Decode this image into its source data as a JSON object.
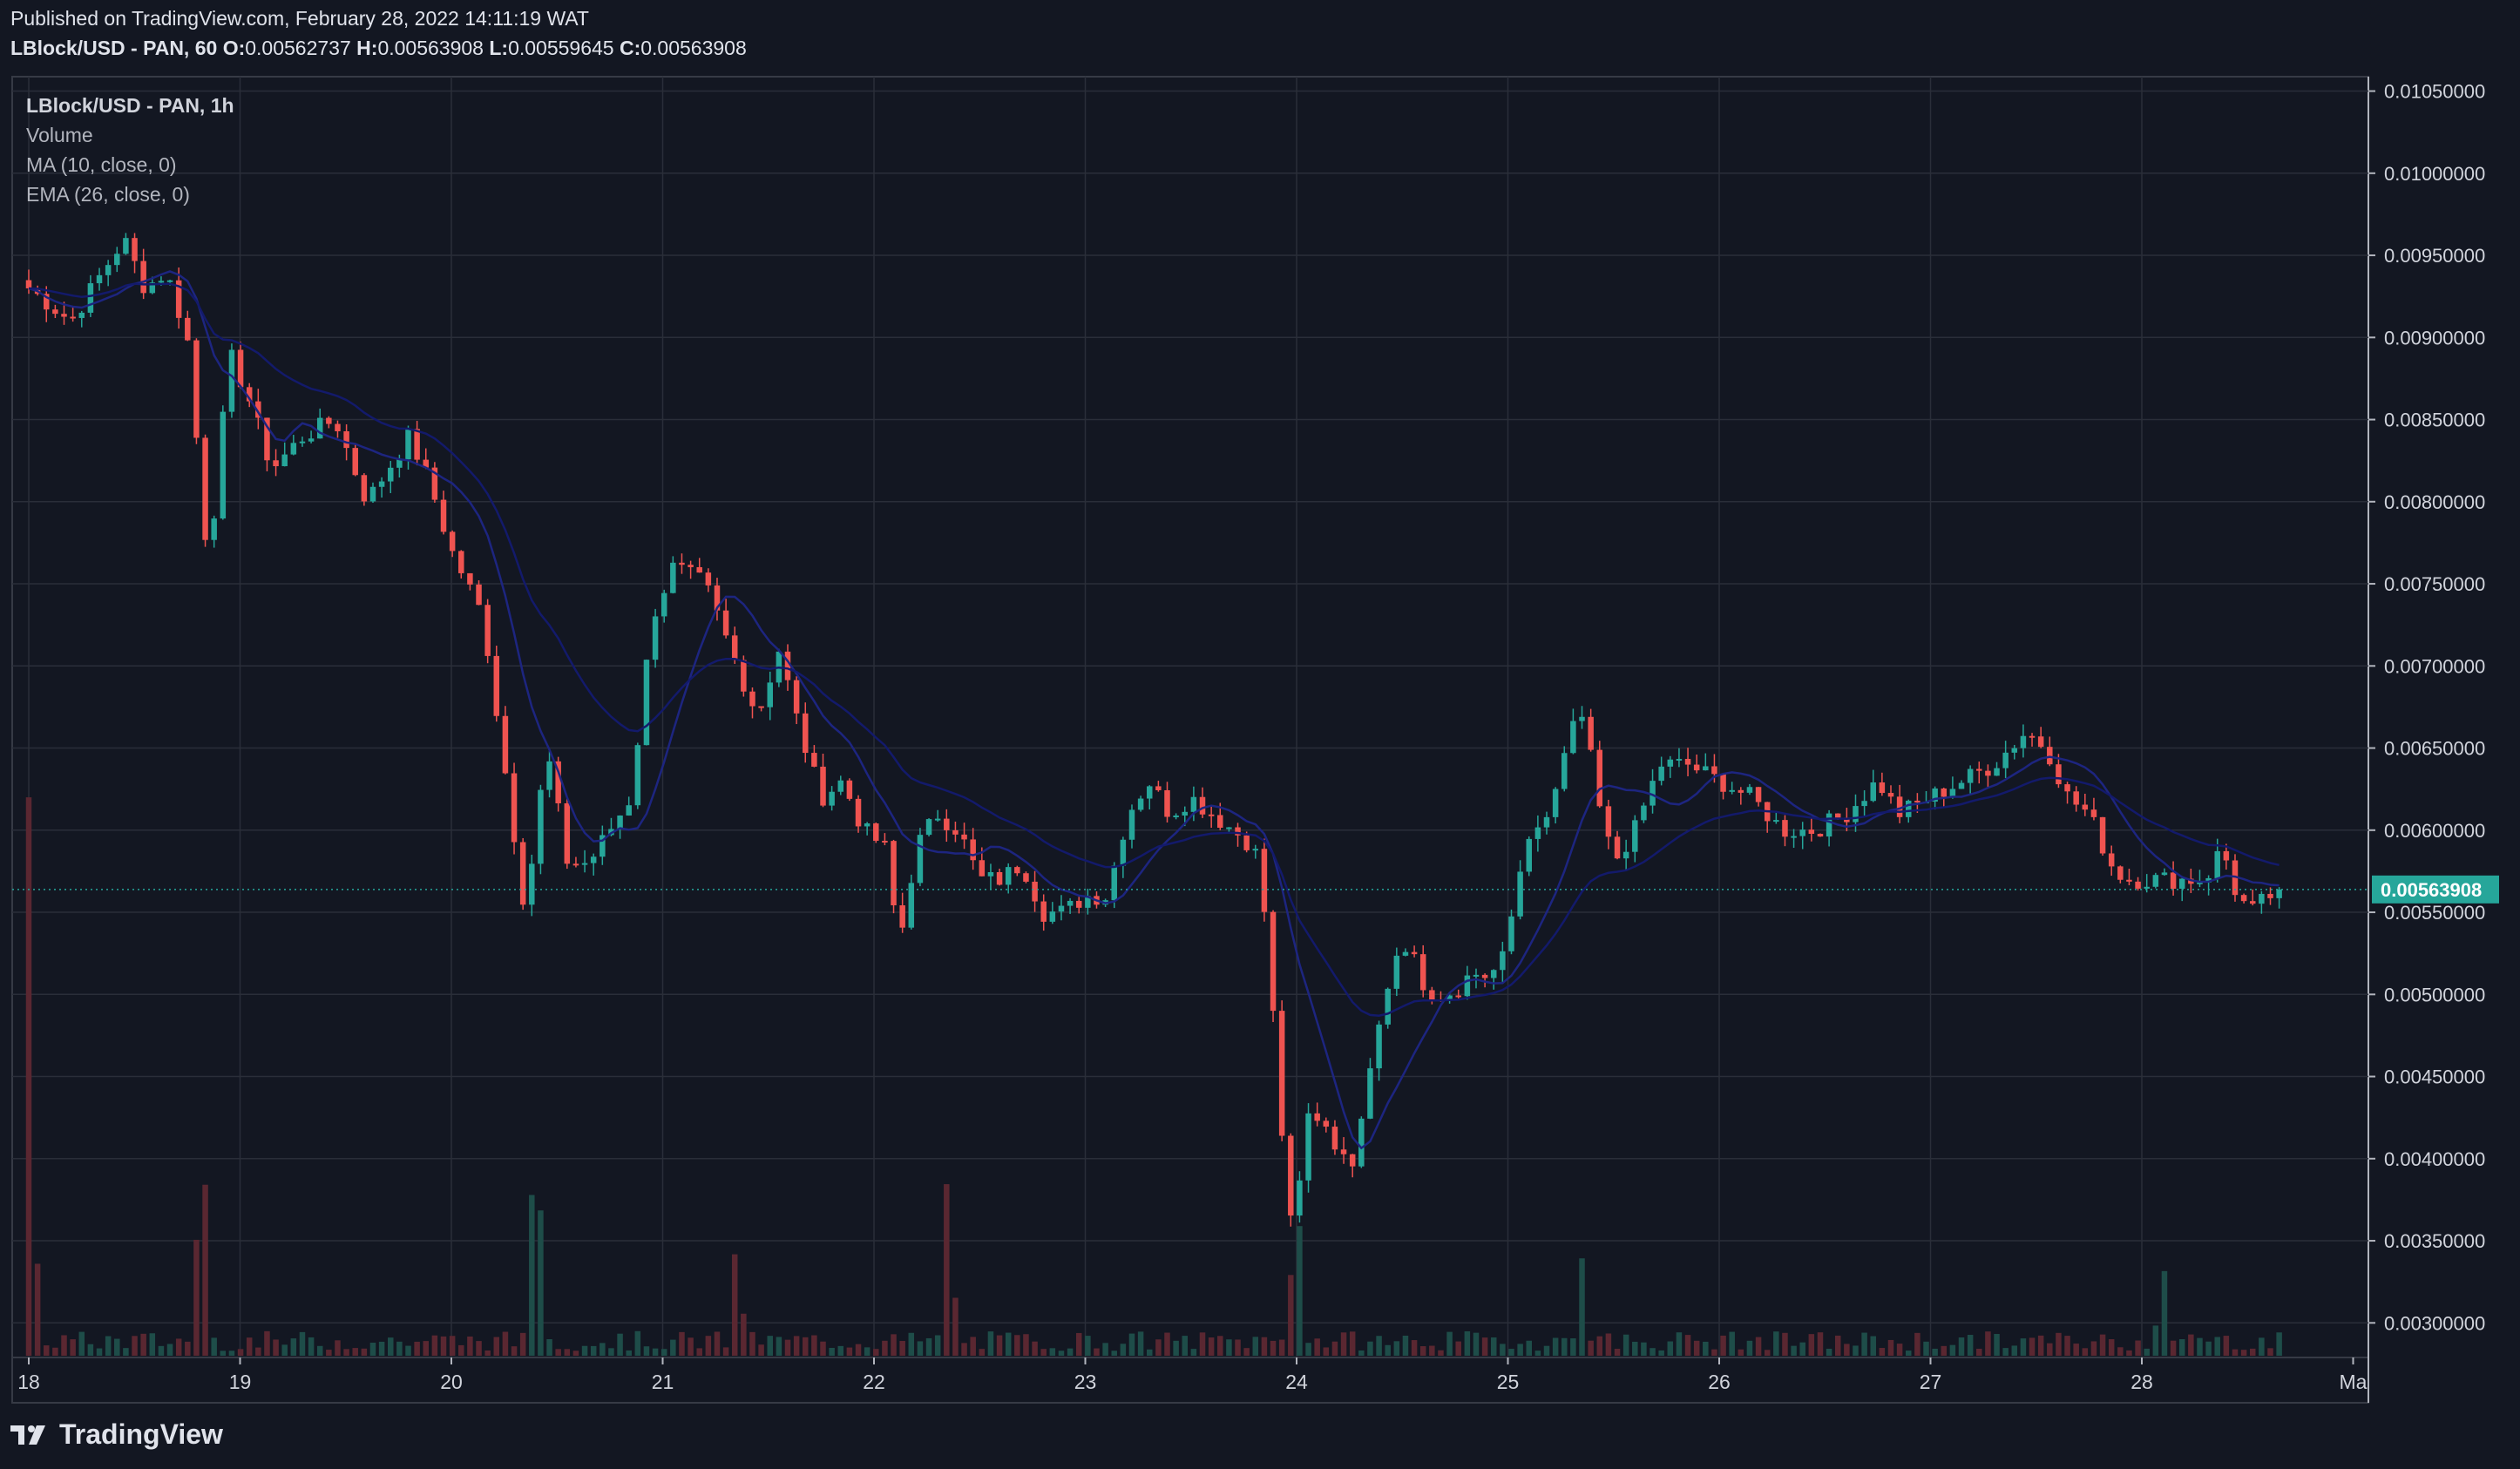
{
  "header": {
    "published": "Published on TradingView.com, February 28, 2022 14:11:19 WAT",
    "symbol": "LBlock/USD - PAN, 60",
    "open_label": "O:",
    "open": "0.00562737",
    "high_label": "H:",
    "high": "0.00563908",
    "low_label": "L:",
    "low": "0.00559645",
    "close_label": "C:",
    "close": "0.00563908"
  },
  "legend": {
    "title": "LBlock/USD - PAN, 1h",
    "items": [
      "Volume",
      "MA (10, close, 0)",
      "EMA (26, close, 0)"
    ]
  },
  "footer": {
    "brand": "TradingView",
    "logo_icon": "tradingview-logo-icon"
  },
  "colors": {
    "background": "#131722",
    "grid": "#2a2e39",
    "up": "#26a69a",
    "down": "#ef5350",
    "vol_up": "#1e4d49",
    "vol_down": "#5a2731",
    "ma": "#1d2580",
    "ema": "#131a6b",
    "last_price": "#26a69a"
  },
  "chart_data": {
    "type": "candlestick",
    "timeframe": "1h",
    "y_axis": {
      "min": 0.0028,
      "max": 0.0106,
      "ticks": [
        "0.01050000",
        "0.01000000",
        "0.00950000",
        "0.00900000",
        "0.00850000",
        "0.00800000",
        "0.00750000",
        "0.00700000",
        "0.00650000",
        "0.00600000",
        "0.00550000",
        "0.00500000",
        "0.00450000",
        "0.00400000",
        "0.00350000",
        "0.00300000"
      ]
    },
    "x_axis": {
      "ticks": [
        "18",
        "19",
        "20",
        "21",
        "22",
        "23",
        "24",
        "25",
        "26",
        "27",
        "28",
        "Ma"
      ]
    },
    "last_price": {
      "value": 0.00563908,
      "label": "0.00563908"
    },
    "grid": true,
    "close_anchors": [
      [
        0,
        0.0093
      ],
      [
        0.2,
        0.0091
      ],
      [
        0.45,
        0.0096
      ],
      [
        0.55,
        0.0093
      ],
      [
        0.65,
        0.0094
      ],
      [
        0.75,
        0.009
      ],
      [
        0.85,
        0.0076
      ],
      [
        0.95,
        0.0089
      ],
      [
        1.05,
        0.0086
      ],
      [
        1.15,
        0.0082
      ],
      [
        1.3,
        0.0084
      ],
      [
        1.45,
        0.0085
      ],
      [
        1.6,
        0.008
      ],
      [
        1.7,
        0.0082
      ],
      [
        1.8,
        0.0084
      ],
      [
        1.9,
        0.0081
      ],
      [
        2.0,
        0.0077
      ],
      [
        2.15,
        0.0073
      ],
      [
        2.25,
        0.0064
      ],
      [
        2.35,
        0.0055
      ],
      [
        2.45,
        0.0065
      ],
      [
        2.55,
        0.0058
      ],
      [
        2.65,
        0.0058
      ],
      [
        2.75,
        0.006
      ],
      [
        2.85,
        0.0062
      ],
      [
        2.95,
        0.0073
      ],
      [
        3.05,
        0.0076
      ],
      [
        3.2,
        0.0075
      ],
      [
        3.35,
        0.007
      ],
      [
        3.45,
        0.0067
      ],
      [
        3.55,
        0.0071
      ],
      [
        3.65,
        0.0066
      ],
      [
        3.75,
        0.0062
      ],
      [
        3.85,
        0.0063
      ],
      [
        3.95,
        0.006
      ],
      [
        4.05,
        0.0059
      ],
      [
        4.12,
        0.0053
      ],
      [
        4.2,
        0.0059
      ],
      [
        4.3,
        0.0061
      ],
      [
        4.4,
        0.006
      ],
      [
        4.5,
        0.0057
      ],
      [
        4.6,
        0.0057
      ],
      [
        4.7,
        0.0058
      ],
      [
        4.8,
        0.0055
      ],
      [
        4.9,
        0.0055
      ],
      [
        5.0,
        0.0056
      ],
      [
        5.1,
        0.0056
      ],
      [
        5.2,
        0.0061
      ],
      [
        5.3,
        0.0063
      ],
      [
        5.4,
        0.0061
      ],
      [
        5.5,
        0.0062
      ],
      [
        5.6,
        0.0061
      ],
      [
        5.7,
        0.006
      ],
      [
        5.8,
        0.0059
      ],
      [
        5.86,
        0.0054
      ],
      [
        5.92,
        0.0043
      ],
      [
        5.98,
        0.0035
      ],
      [
        6.06,
        0.0043
      ],
      [
        6.15,
        0.0042
      ],
      [
        6.25,
        0.0039
      ],
      [
        6.35,
        0.0046
      ],
      [
        6.45,
        0.0052
      ],
      [
        6.55,
        0.0053
      ],
      [
        6.62,
        0.0049
      ],
      [
        6.72,
        0.005
      ],
      [
        6.85,
        0.0051
      ],
      [
        6.95,
        0.0051
      ],
      [
        7.02,
        0.0055
      ],
      [
        7.12,
        0.006
      ],
      [
        7.2,
        0.0061
      ],
      [
        7.3,
        0.0066
      ],
      [
        7.36,
        0.0067
      ],
      [
        7.42,
        0.0062
      ],
      [
        7.5,
        0.0058
      ],
      [
        7.6,
        0.006
      ],
      [
        7.72,
        0.0064
      ],
      [
        7.85,
        0.0064
      ],
      [
        8.0,
        0.0063
      ],
      [
        8.15,
        0.0062
      ],
      [
        8.3,
        0.006
      ],
      [
        8.45,
        0.006
      ],
      [
        8.6,
        0.0061
      ],
      [
        8.75,
        0.0063
      ],
      [
        8.85,
        0.0061
      ],
      [
        9.0,
        0.0062
      ],
      [
        9.15,
        0.0063
      ],
      [
        9.3,
        0.0064
      ],
      [
        9.45,
        0.0066
      ],
      [
        9.55,
        0.0065
      ],
      [
        9.65,
        0.0062
      ],
      [
        9.75,
        0.0061
      ],
      [
        9.85,
        0.0058
      ],
      [
        9.92,
        0.0057
      ],
      [
        10.05,
        0.0057
      ],
      [
        10.2,
        0.0057
      ],
      [
        10.3,
        0.0057
      ],
      [
        10.38,
        0.0059
      ],
      [
        10.45,
        0.0056
      ],
      [
        10.52,
        0.0055
      ],
      [
        10.6,
        0.0056
      ],
      [
        10.65,
        0.0056
      ]
    ],
    "volume_peaks": [
      [
        0.0,
        0.0034
      ],
      [
        0.82,
        0.0015
      ],
      [
        2.4,
        0.0016
      ],
      [
        3.35,
        0.00075
      ],
      [
        4.35,
        0.0012
      ],
      [
        6.0,
        0.0011
      ],
      [
        7.35,
        0.0006
      ],
      [
        10.1,
        0.0006
      ]
    ]
  }
}
